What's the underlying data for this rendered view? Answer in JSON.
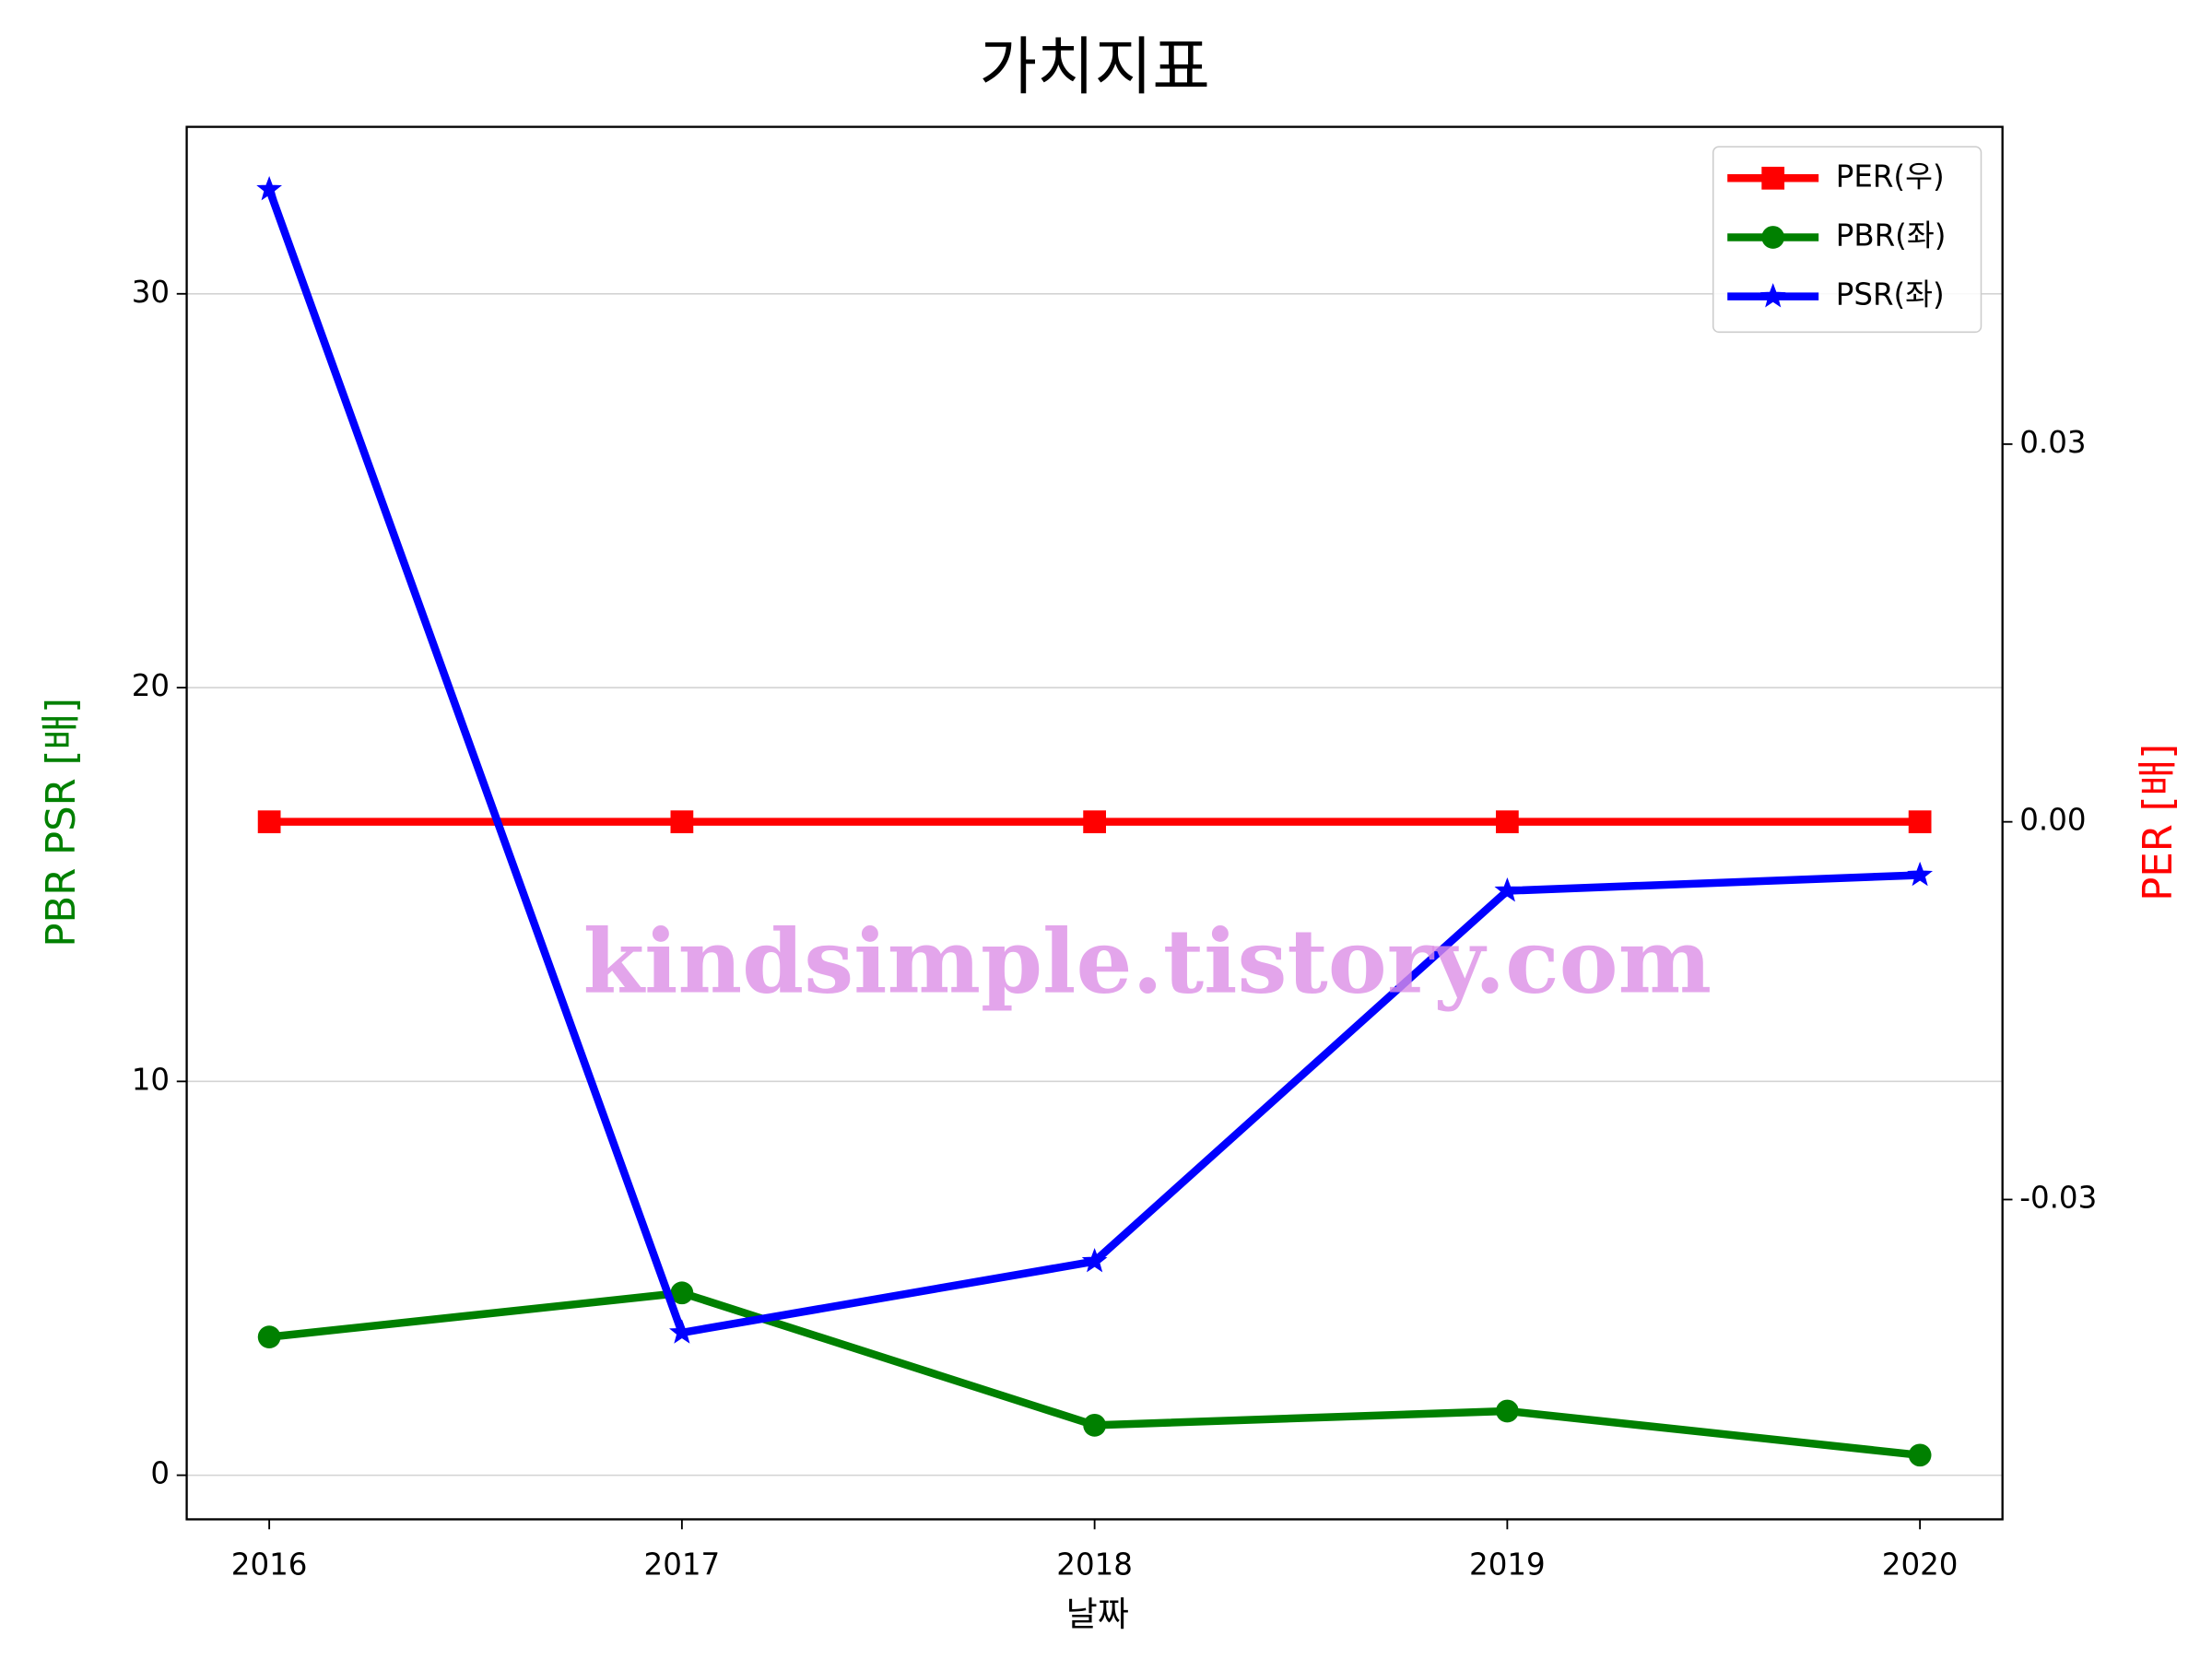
{
  "chart_data": {
    "type": "line",
    "title": "가치지표",
    "x_label": "날짜",
    "y_label": "PBR PSR [배]",
    "y2_label": "PER [배]",
    "y_label_color": "green",
    "y2_label_color": "red",
    "watermark": "kindsimple.tistory.com",
    "x": [
      2016,
      2017,
      2018,
      2019,
      2020
    ],
    "xlim": [
      2015.8,
      2020.2
    ],
    "xticks": [
      2016,
      2017,
      2018,
      2019,
      2020
    ],
    "ylim": [
      -1.12,
      34.24
    ],
    "yticks": [
      0,
      10,
      20,
      30
    ],
    "y2lim": [
      -0.0554,
      0.0552
    ],
    "y2ticks": [
      -0.03,
      {
        "value": 0,
        "label": "0.00"
      },
      0.03
    ],
    "grid": true,
    "legend": "upper right",
    "series": [
      {
        "name": "PER(우)",
        "color": "red",
        "marker": "square",
        "axis": "y2",
        "values": [
          0,
          0,
          0,
          0,
          0
        ]
      },
      {
        "name": "PBR(좌)",
        "color": "green",
        "marker": "circle",
        "values": [
          3.51,
          4.63,
          1.27,
          1.63,
          0.51
        ]
      },
      {
        "name": "PSR(좌)",
        "color": "blue",
        "marker": "star",
        "values": [
          32.65,
          3.62,
          5.43,
          14.84,
          15.24
        ]
      }
    ]
  }
}
